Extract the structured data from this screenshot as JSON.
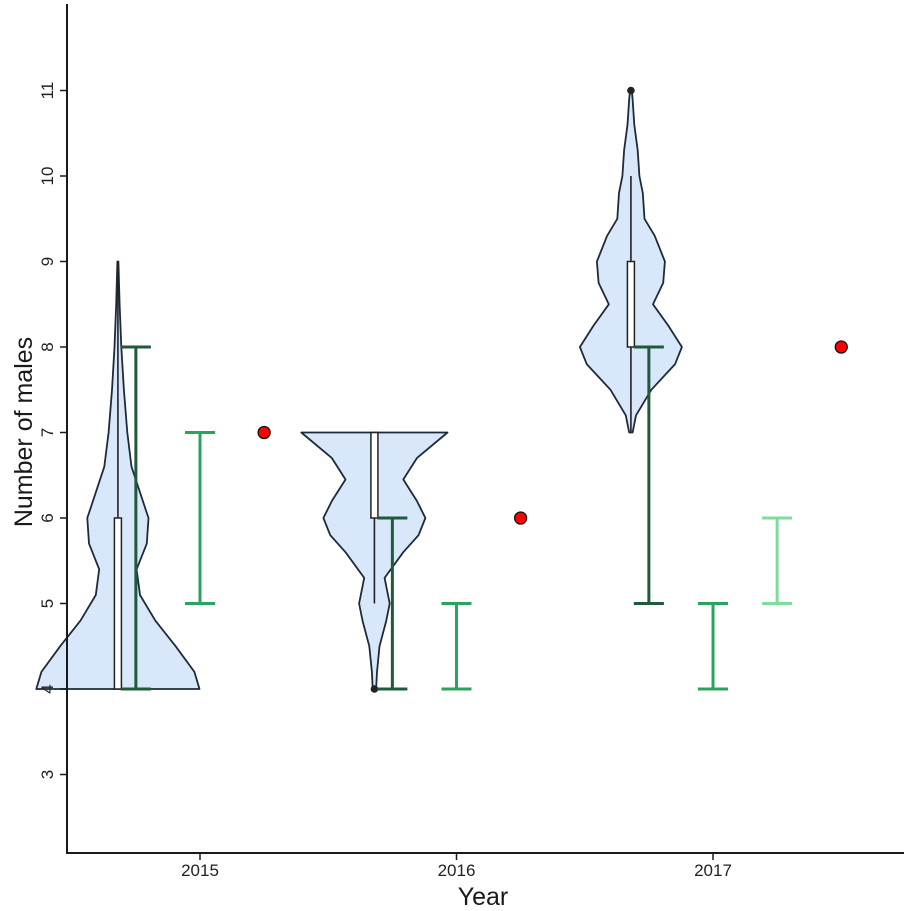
{
  "chart_data": {
    "type": "violin",
    "xlabel": "Year",
    "ylabel": "Number of males",
    "ylim": [
      2,
      12
    ],
    "yticks": [
      3,
      4,
      5,
      6,
      7,
      8,
      9,
      10,
      11
    ],
    "categories": [
      "2015",
      "2016",
      "2017"
    ],
    "violins": [
      {
        "year": "2015",
        "min": 4,
        "max": 9,
        "q1": 4,
        "median": 6,
        "q3": 6,
        "whisker": [
          4,
          9
        ],
        "outliers": [],
        "density": [
          [
            4,
            0.48
          ],
          [
            4.2,
            0.45
          ],
          [
            4.5,
            0.34
          ],
          [
            4.8,
            0.22
          ],
          [
            5.1,
            0.13
          ],
          [
            5.4,
            0.11
          ],
          [
            5.7,
            0.17
          ],
          [
            6.0,
            0.18
          ],
          [
            6.3,
            0.13
          ],
          [
            6.6,
            0.08
          ],
          [
            7.0,
            0.055
          ],
          [
            7.5,
            0.035
          ],
          [
            8.0,
            0.02
          ],
          [
            8.5,
            0.01
          ],
          [
            8.8,
            0.006
          ],
          [
            9.0,
            0.003
          ]
        ]
      },
      {
        "year": "2016",
        "min": 4,
        "max": 7,
        "q1": 6,
        "median": 6,
        "q3": 7,
        "whisker": [
          5,
          7
        ],
        "outliers": [
          4
        ],
        "density": [
          [
            4,
            0.01
          ],
          [
            4.2,
            0.015
          ],
          [
            4.5,
            0.03
          ],
          [
            4.8,
            0.07
          ],
          [
            5.0,
            0.09
          ],
          [
            5.3,
            0.06
          ],
          [
            5.6,
            0.17
          ],
          [
            5.8,
            0.26
          ],
          [
            6.0,
            0.3
          ],
          [
            6.2,
            0.25
          ],
          [
            6.45,
            0.17
          ],
          [
            6.7,
            0.25
          ],
          [
            7.0,
            0.43
          ]
        ]
      },
      {
        "year": "2017",
        "min": 7,
        "max": 11,
        "q1": 8,
        "median": 8,
        "q3": 9,
        "whisker": [
          7,
          10
        ],
        "outliers": [
          11
        ],
        "density": [
          [
            7,
            0.01
          ],
          [
            7.2,
            0.03
          ],
          [
            7.5,
            0.12
          ],
          [
            7.8,
            0.26
          ],
          [
            8.0,
            0.3
          ],
          [
            8.25,
            0.22
          ],
          [
            8.5,
            0.13
          ],
          [
            8.75,
            0.19
          ],
          [
            9.0,
            0.2
          ],
          [
            9.3,
            0.14
          ],
          [
            9.5,
            0.08
          ],
          [
            9.8,
            0.07
          ],
          [
            10.0,
            0.05
          ],
          [
            10.3,
            0.04
          ],
          [
            10.6,
            0.02
          ],
          [
            10.9,
            0.01
          ],
          [
            11,
            0.005
          ]
        ]
      }
    ],
    "errorbars": [
      {
        "year": "2015",
        "offset": 0.25,
        "low": 4,
        "high": 8,
        "color": "#1f5a3a"
      },
      {
        "year": "2015",
        "offset": 0.5,
        "low": 5,
        "high": 7,
        "color": "#2ca25f"
      },
      {
        "year": "2016",
        "offset": 0.25,
        "low": 4,
        "high": 6,
        "color": "#1f5a3a"
      },
      {
        "year": "2016",
        "offset": 0.5,
        "low": 4,
        "high": 5,
        "color": "#2ca25f"
      },
      {
        "year": "2017",
        "offset": 0.25,
        "low": 5,
        "high": 8,
        "color": "#1f5a3a"
      },
      {
        "year": "2017",
        "offset": 0.5,
        "low": 4,
        "high": 5,
        "color": "#2ca25f"
      },
      {
        "year": "2017",
        "offset": 0.75,
        "low": 5,
        "high": 6,
        "color": "#7fdc9f"
      }
    ],
    "points": [
      {
        "year": "2015",
        "offset": 0.75,
        "value": 7,
        "color": "#ff0000"
      },
      {
        "year": "2016",
        "offset": 0.75,
        "value": 6,
        "color": "#ff0000"
      },
      {
        "year": "2017",
        "offset": 1.0,
        "value": 8,
        "color": "#ff0000"
      }
    ],
    "violin_fill": "#d9e7fb",
    "violin_stroke": "#1e2a3a"
  }
}
